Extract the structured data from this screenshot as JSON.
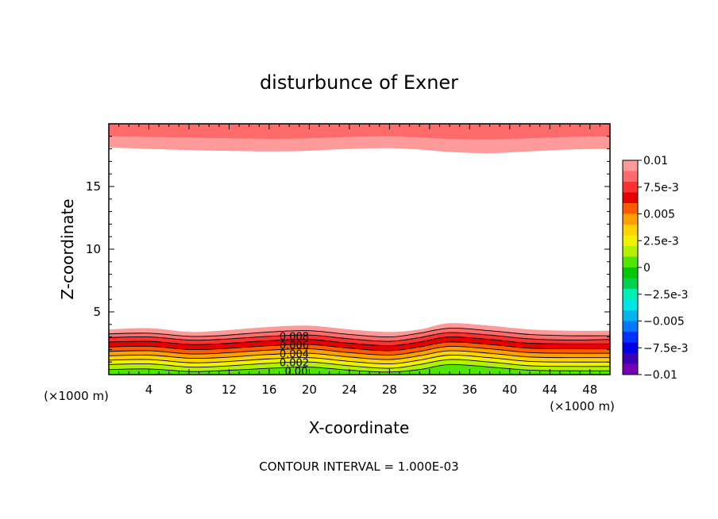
{
  "chart_data": {
    "type": "contour",
    "title": "disturbunce of Exner",
    "xlabel": "X-coordinate",
    "ylabel": "Z-coordinate",
    "x_unit_label": "(×1000 m)",
    "x_unit_label_right": "(×1000 m)",
    "footer": "CONTOUR INTERVAL = 1.000E-03",
    "xlim": [
      0,
      50
    ],
    "ylim": [
      0,
      20
    ],
    "x_ticks": [
      4,
      8,
      12,
      16,
      20,
      24,
      28,
      32,
      36,
      40,
      44,
      48
    ],
    "x_tick_labels": [
      "4",
      "8",
      "12",
      "16",
      "20",
      "24",
      "28",
      "32",
      "36",
      "40",
      "44",
      "48"
    ],
    "y_ticks": [
      5,
      10,
      15
    ],
    "y_tick_labels": [
      "5",
      "10",
      "15"
    ],
    "contour_interval": 0.001,
    "colorbar": {
      "min": -0.01,
      "max": 0.01,
      "tick_labels": [
        "0.01",
        "7.5e-3",
        "0.005",
        "2.5e-3",
        "0",
        "−2.5e-3",
        "−0.005",
        "−7.5e-3",
        "−0.01"
      ],
      "levels": [
        {
          "from": 0.009,
          "to": 0.01,
          "color": "#ff9a9a"
        },
        {
          "from": 0.008,
          "to": 0.009,
          "color": "#ff6a6a"
        },
        {
          "from": 0.007,
          "to": 0.008,
          "color": "#ff3030"
        },
        {
          "from": 0.006,
          "to": 0.007,
          "color": "#e60000"
        },
        {
          "from": 0.005,
          "to": 0.006,
          "color": "#ff5a00"
        },
        {
          "from": 0.004,
          "to": 0.005,
          "color": "#ffa000"
        },
        {
          "from": 0.003,
          "to": 0.004,
          "color": "#ffd200"
        },
        {
          "from": 0.002,
          "to": 0.003,
          "color": "#f0f000"
        },
        {
          "from": 0.001,
          "to": 0.002,
          "color": "#b4f000"
        },
        {
          "from": 0.0,
          "to": 0.001,
          "color": "#50e600"
        },
        {
          "from": -0.001,
          "to": 0.0,
          "color": "#00c800"
        },
        {
          "from": -0.002,
          "to": -0.001,
          "color": "#00d250"
        },
        {
          "from": -0.003,
          "to": -0.002,
          "color": "#00f0b4"
        },
        {
          "from": -0.004,
          "to": -0.003,
          "color": "#00e6e6"
        },
        {
          "from": -0.005,
          "to": -0.004,
          "color": "#00b4f0"
        },
        {
          "from": -0.006,
          "to": -0.005,
          "color": "#0078ff"
        },
        {
          "from": -0.007,
          "to": -0.006,
          "color": "#0032ff"
        },
        {
          "from": -0.008,
          "to": -0.007,
          "color": "#0000e6"
        },
        {
          "from": -0.009,
          "to": -0.008,
          "color": "#3c00b4"
        },
        {
          "from": -0.01,
          "to": -0.009,
          "color": "#7800b4"
        }
      ]
    },
    "lower_bands": [
      {
        "level": 0.009,
        "z_top": [
          3.6,
          3.7,
          3.4,
          3.5,
          3.8,
          3.9,
          3.6,
          3.4,
          3.6,
          4.1,
          3.9,
          3.6,
          3.5,
          3.5
        ],
        "color": "#ff9a9a"
      },
      {
        "level": 0.008,
        "z_top": [
          3.25,
          3.3,
          3.05,
          3.1,
          3.4,
          3.5,
          3.2,
          3.0,
          3.3,
          3.7,
          3.5,
          3.2,
          3.1,
          3.1
        ],
        "color": "#ff6a6a"
      },
      {
        "level": 0.007,
        "z_top": [
          2.95,
          3.0,
          2.75,
          2.8,
          3.05,
          3.15,
          2.85,
          2.65,
          2.95,
          3.35,
          3.15,
          2.85,
          2.75,
          2.8
        ],
        "color": "#ff3030"
      },
      {
        "level": 0.006,
        "z_top": [
          2.6,
          2.65,
          2.4,
          2.45,
          2.7,
          2.8,
          2.5,
          2.3,
          2.6,
          3.0,
          2.8,
          2.5,
          2.45,
          2.45
        ],
        "color": "#e60000"
      },
      {
        "level": 0.005,
        "z_top": [
          2.2,
          2.25,
          2.0,
          2.05,
          2.3,
          2.4,
          2.1,
          1.9,
          2.2,
          2.6,
          2.4,
          2.1,
          2.05,
          2.05
        ],
        "color": "#ff5a00"
      },
      {
        "level": 0.004,
        "z_top": [
          1.85,
          1.9,
          1.65,
          1.7,
          1.95,
          2.05,
          1.75,
          1.55,
          1.85,
          2.25,
          2.05,
          1.75,
          1.7,
          1.7
        ],
        "color": "#ffa000"
      },
      {
        "level": 0.003,
        "z_top": [
          1.5,
          1.55,
          1.3,
          1.35,
          1.6,
          1.7,
          1.4,
          1.2,
          1.5,
          1.9,
          1.7,
          1.4,
          1.35,
          1.35
        ],
        "color": "#ffd200"
      },
      {
        "level": 0.002,
        "z_top": [
          1.15,
          1.2,
          0.95,
          1.0,
          1.25,
          1.35,
          1.05,
          0.85,
          1.15,
          1.55,
          1.35,
          1.05,
          1.0,
          1.0
        ],
        "color": "#f0f000"
      },
      {
        "level": 0.001,
        "z_top": [
          0.8,
          0.85,
          0.6,
          0.65,
          0.9,
          1.0,
          0.7,
          0.5,
          0.8,
          1.2,
          1.0,
          0.7,
          0.65,
          0.65
        ],
        "color": "#b4f000"
      },
      {
        "level": 0.0,
        "z_top": [
          0.4,
          0.45,
          0.25,
          0.3,
          0.5,
          0.6,
          0.35,
          0.2,
          0.4,
          0.8,
          0.6,
          0.35,
          0.3,
          0.3
        ],
        "color": "#50e600"
      }
    ],
    "upper_bands": [
      {
        "level": 0.009,
        "z_bottom": [
          18.1,
          18.0,
          17.9,
          17.85,
          17.8,
          17.85,
          18.0,
          18.05,
          17.95,
          17.75,
          17.65,
          17.8,
          17.95,
          18.0
        ],
        "color": "#ff9a9a"
      },
      {
        "level": 0.01,
        "z_bottom": [
          19.0,
          18.95,
          18.9,
          18.85,
          18.8,
          18.85,
          18.95,
          19.0,
          18.9,
          18.8,
          18.75,
          18.85,
          18.95,
          19.0
        ],
        "color": "#ff6a6a"
      }
    ],
    "band_x": [
      0,
      4,
      8,
      11,
      16,
      20,
      24,
      28,
      31,
      34,
      38,
      42,
      46,
      50
    ],
    "contour_labels": [
      {
        "text": "0.008",
        "x": 18.5,
        "z": 2.95
      },
      {
        "text": "0.006",
        "x": 18.5,
        "z": 2.25
      },
      {
        "text": "0.004",
        "x": 18.5,
        "z": 1.55
      },
      {
        "text": "0.002",
        "x": 18.5,
        "z": 0.85
      },
      {
        "text": "0.00",
        "x": 18.7,
        "z": 0.15
      }
    ]
  }
}
